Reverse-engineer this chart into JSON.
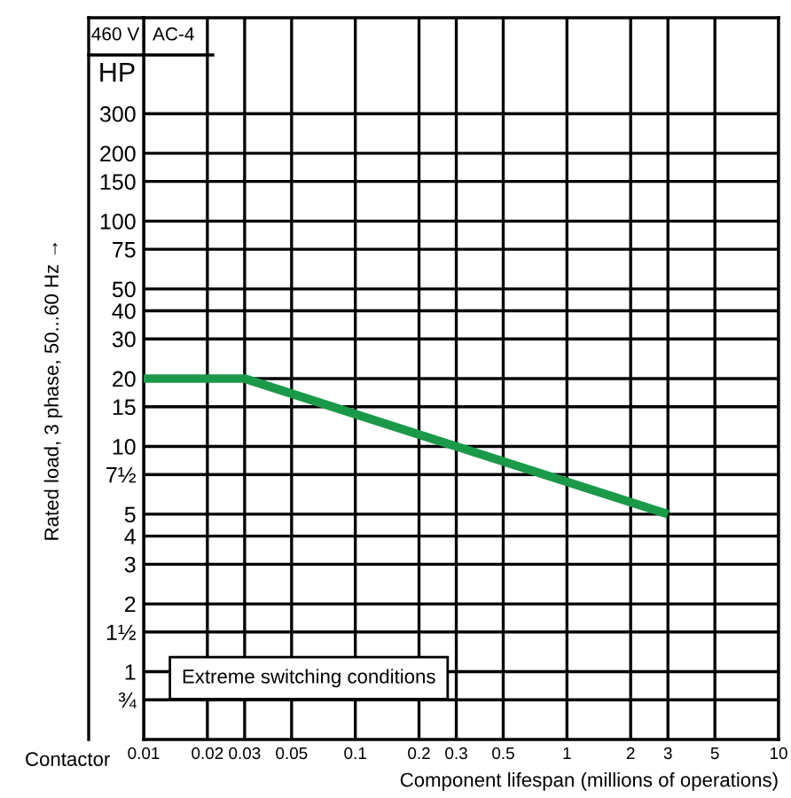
{
  "chart_data": {
    "type": "line",
    "log": "xy",
    "grid": true,
    "xlabel": "Component lifespan (millions of operations)",
    "ylabel": "Rated load, 3 phase, 50...60 Hz →",
    "annotations": [
      "HP",
      "460 V",
      "AC-4",
      "Contactor",
      "Extreme switching conditions"
    ],
    "x": [
      0.01,
      0.03,
      3
    ],
    "series": [
      {
        "color": "#1a9a48",
        "values": [
          20,
          20,
          5
        ]
      }
    ],
    "xlim": [
      0.01,
      10
    ],
    "ylim": [
      0.5,
      800
    ],
    "xticks": [
      0.01,
      0.02,
      0.03,
      0.05,
      0.1,
      0.2,
      0.3,
      0.5,
      1,
      2,
      3,
      5,
      10
    ],
    "yticks": [
      {
        "value": 0.75,
        "label": "¾"
      },
      1,
      {
        "value": 1.5,
        "label": "1½"
      },
      2,
      3,
      4,
      5,
      {
        "value": 7.5,
        "label": "7½"
      },
      10,
      15,
      20,
      30,
      40,
      50,
      75,
      100,
      150,
      200,
      300
    ]
  }
}
